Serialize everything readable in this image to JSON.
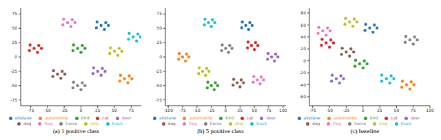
{
  "chart_data": [
    {
      "type": "scatter",
      "title": "(a) 1 positive class",
      "xlim": [
        -90,
        90
      ],
      "xticks": [
        -75,
        -50,
        -25,
        0,
        25,
        50,
        75
      ],
      "ylim": [
        -85,
        85
      ],
      "yticks": [
        -75,
        -50,
        -25,
        0,
        25,
        50,
        75
      ],
      "legend": "bottom",
      "marker": "circle",
      "series": [
        {
          "name": "airplane",
          "color": "#1f77b4",
          "x": [
            30,
            37,
            24,
            35,
            23,
            41
          ],
          "y": [
            55,
            60,
            61,
            48,
            51,
            55
          ]
        },
        {
          "name": "automobile",
          "color": "#ff7f0e",
          "x": [
            65,
            72,
            59,
            70,
            58,
            76
          ],
          "y": [
            -38,
            -33,
            -32,
            -45,
            -42,
            -38
          ]
        },
        {
          "name": "bird",
          "color": "#2ca02c",
          "x": [
            -5,
            2,
            -11,
            0,
            -12,
            6
          ],
          "y": [
            15,
            20,
            21,
            8,
            11,
            15
          ]
        },
        {
          "name": "cat",
          "color": "#d62728",
          "x": [
            -70,
            -63,
            -76,
            -65,
            -77,
            -59
          ],
          "y": [
            15,
            20,
            21,
            8,
            11,
            15
          ]
        },
        {
          "name": "deer",
          "color": "#9467bd",
          "x": [
            25,
            32,
            19,
            30,
            18,
            36
          ],
          "y": [
            -25,
            -20,
            -19,
            -32,
            -29,
            -25
          ]
        },
        {
          "name": "dog",
          "color": "#8c564b",
          "x": [
            -35,
            -28,
            -41,
            -30,
            -42,
            -24
          ],
          "y": [
            -30,
            -25,
            -24,
            -37,
            -34,
            -30
          ]
        },
        {
          "name": "frog",
          "color": "#e377c2",
          "x": [
            -20,
            -13,
            -26,
            -15,
            -27,
            -9
          ],
          "y": [
            60,
            65,
            66,
            53,
            56,
            60
          ]
        },
        {
          "name": "horse",
          "color": "#7f7f7f",
          "x": [
            -5,
            2,
            -11,
            0,
            -12,
            6
          ],
          "y": [
            -50,
            -45,
            -44,
            -57,
            -54,
            -50
          ]
        },
        {
          "name": "ship",
          "color": "#bcbd22",
          "x": [
            50,
            57,
            44,
            55,
            43,
            61
          ],
          "y": [
            10,
            15,
            16,
            3,
            6,
            10
          ]
        },
        {
          "name": "truck",
          "color": "#17becf",
          "x": [
            78,
            85,
            72,
            83,
            71,
            89
          ],
          "y": [
            35,
            40,
            41,
            28,
            31,
            35
          ]
        }
      ]
    },
    {
      "type": "scatter",
      "title": "(b) 5 positive class",
      "xlim": [
        -105,
        105
      ],
      "xticks": [
        -100,
        -75,
        -50,
        -25,
        0,
        25,
        50,
        75,
        100
      ],
      "ylim": [
        -85,
        85
      ],
      "yticks": [
        -75,
        -50,
        -25,
        0,
        25,
        50,
        75
      ],
      "legend": "bottom",
      "marker": "circle",
      "series": [
        {
          "name": "airplane",
          "color": "#1f77b4",
          "x": [
            35,
            42,
            29,
            40,
            28,
            46
          ],
          "y": [
            55,
            60,
            61,
            48,
            51,
            55
          ]
        },
        {
          "name": "automobile",
          "color": "#ff7f0e",
          "x": [
            -75,
            -68,
            -81,
            -70,
            -82,
            -64
          ],
          "y": [
            0,
            5,
            6,
            -7,
            -4,
            0
          ]
        },
        {
          "name": "bird",
          "color": "#2ca02c",
          "x": [
            -25,
            -18,
            -31,
            -20,
            -32,
            -14
          ],
          "y": [
            -50,
            -45,
            -44,
            -57,
            -54,
            -50
          ]
        },
        {
          "name": "cat",
          "color": "#d62728",
          "x": [
            45,
            52,
            39,
            50,
            38,
            56
          ],
          "y": [
            20,
            25,
            26,
            13,
            16,
            20
          ]
        },
        {
          "name": "deer",
          "color": "#9467bd",
          "x": [
            80,
            87,
            74,
            85,
            73,
            91
          ],
          "y": [
            0,
            5,
            6,
            -7,
            -4,
            0
          ]
        },
        {
          "name": "dog",
          "color": "#8c564b",
          "x": [
            20,
            27,
            14,
            25,
            13,
            31
          ],
          "y": [
            -45,
            -40,
            -39,
            -52,
            -49,
            -45
          ]
        },
        {
          "name": "frog",
          "color": "#e377c2",
          "x": [
            55,
            62,
            49,
            60,
            48,
            66
          ],
          "y": [
            -40,
            -35,
            -34,
            -47,
            -44,
            -40
          ]
        },
        {
          "name": "horse",
          "color": "#7f7f7f",
          "x": [
            0,
            7,
            -6,
            5,
            -7,
            11
          ],
          "y": [
            15,
            20,
            21,
            8,
            11,
            15
          ]
        },
        {
          "name": "ship",
          "color": "#bcbd22",
          "x": [
            -40,
            -33,
            -46,
            -35,
            -47,
            -29
          ],
          "y": [
            -25,
            -20,
            -19,
            -32,
            -29,
            -25
          ]
        },
        {
          "name": "truck",
          "color": "#17becf",
          "x": [
            -30,
            -23,
            -36,
            -25,
            -37,
            -19
          ],
          "y": [
            60,
            65,
            66,
            53,
            56,
            60
          ]
        }
      ]
    },
    {
      "type": "scatter",
      "title": "(c) baseline",
      "xlim": [
        -80,
        100
      ],
      "xticks": [
        -75,
        -50,
        -25,
        0,
        25,
        50,
        75,
        100
      ],
      "ylim": [
        -75,
        88
      ],
      "yticks": [
        -60,
        -40,
        -20,
        0,
        20,
        40,
        60,
        80
      ],
      "legend": "bottom",
      "marker": "circle",
      "series": [
        {
          "name": "airplane",
          "color": "#1f77b4",
          "x": [
            10,
            17,
            4,
            15,
            3,
            21
          ],
          "y": [
            55,
            60,
            61,
            48,
            51,
            55
          ]
        },
        {
          "name": "automobile",
          "color": "#ff7f0e",
          "x": [
            65,
            72,
            59,
            70,
            58,
            76
          ],
          "y": [
            -40,
            -35,
            -34,
            -47,
            -44,
            -40
          ]
        },
        {
          "name": "bird",
          "color": "#2ca02c",
          "x": [
            -5,
            2,
            -11,
            0,
            -12,
            6
          ],
          "y": [
            -5,
            0,
            1,
            -12,
            -9,
            -5
          ]
        },
        {
          "name": "cat",
          "color": "#d62728",
          "x": [
            -55,
            -48,
            -61,
            -50,
            -62,
            -44
          ],
          "y": [
            30,
            35,
            36,
            23,
            26,
            30
          ]
        },
        {
          "name": "deer",
          "color": "#9467bd",
          "x": [
            -40,
            -33,
            -46,
            -35,
            -47,
            -29
          ],
          "y": [
            -30,
            -25,
            -24,
            -37,
            -34,
            -30
          ]
        },
        {
          "name": "dog",
          "color": "#8c564b",
          "x": [
            -25,
            -18,
            -31,
            -20,
            -32,
            -14
          ],
          "y": [
            15,
            20,
            21,
            8,
            11,
            15
          ]
        },
        {
          "name": "frog",
          "color": "#e377c2",
          "x": [
            -60,
            -53,
            -66,
            -55,
            -67,
            -49
          ],
          "y": [
            50,
            55,
            56,
            43,
            46,
            50
          ]
        },
        {
          "name": "horse",
          "color": "#7f7f7f",
          "x": [
            70,
            77,
            64,
            75,
            63,
            81
          ],
          "y": [
            35,
            40,
            41,
            28,
            31,
            35
          ]
        },
        {
          "name": "ship",
          "color": "#bcbd22",
          "x": [
            -20,
            -13,
            -26,
            -15,
            -27,
            -9
          ],
          "y": [
            65,
            70,
            71,
            58,
            61,
            65
          ]
        },
        {
          "name": "truck",
          "color": "#17becf",
          "x": [
            35,
            42,
            28,
            40,
            28,
            46
          ],
          "y": [
            -30,
            -25,
            -24,
            -37,
            -34,
            -30
          ]
        }
      ]
    }
  ]
}
